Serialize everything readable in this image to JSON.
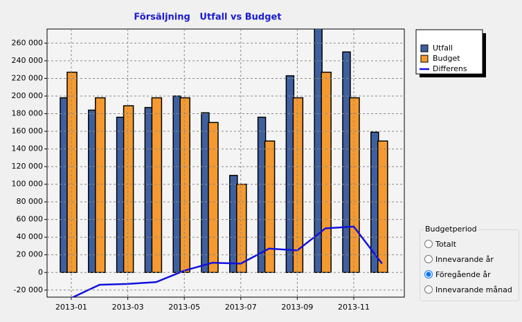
{
  "chart_data": {
    "type": "bar",
    "title": "Försäljning   Utfall vs Budget",
    "categories": [
      "2013-01",
      null,
      "2013-03",
      null,
      "2013-05",
      null,
      "2013-07",
      null,
      "2013-09",
      null,
      "2013-11",
      null
    ],
    "series": [
      {
        "name": "Utfall",
        "color": "#3f60a0",
        "kind": "bar",
        "values": [
          198000,
          184000,
          176000,
          187000,
          200000,
          181000,
          110000,
          176000,
          223000,
          277000,
          250000,
          159000
        ]
      },
      {
        "name": "Budget",
        "color": "#f59a30",
        "kind": "bar",
        "values": [
          227000,
          198000,
          189000,
          198000,
          198000,
          170000,
          100000,
          149000,
          198000,
          227000,
          198000,
          149000
        ]
      },
      {
        "name": "Differens",
        "color": "#1010e0",
        "kind": "line",
        "values": [
          -29000,
          -14000,
          -13000,
          -11000,
          2000,
          11000,
          10000,
          27000,
          25000,
          50000,
          52000,
          10000
        ]
      }
    ],
    "ylim": [
      -28000,
      276000
    ],
    "yticks": [
      {
        "value": -20000,
        "label": "-20 000"
      },
      0,
      {
        "value": 20000,
        "label": "20 000"
      },
      {
        "value": 40000,
        "label": "40 000"
      },
      {
        "value": 60000,
        "label": "60 000"
      },
      {
        "value": 80000,
        "label": "80 000"
      },
      {
        "value": 100000,
        "label": "100 000"
      },
      {
        "value": 120000,
        "label": "120 000"
      },
      {
        "value": 140000,
        "label": "140 000"
      },
      {
        "value": 160000,
        "label": "160 000"
      },
      {
        "value": 180000,
        "label": "180 000"
      },
      {
        "value": 200000,
        "label": "200 000"
      },
      {
        "value": 220000,
        "label": "220 000"
      },
      {
        "value": 240000,
        "label": "240 000"
      },
      {
        "value": 260000,
        "label": "260 000"
      }
    ],
    "grid": true,
    "legend": "right"
  },
  "controls": {
    "title": "Budgetperiod",
    "options": [
      "Totalt",
      "Innevarande år",
      "Föregående år",
      "Innevarande månad"
    ],
    "selected": 2
  }
}
